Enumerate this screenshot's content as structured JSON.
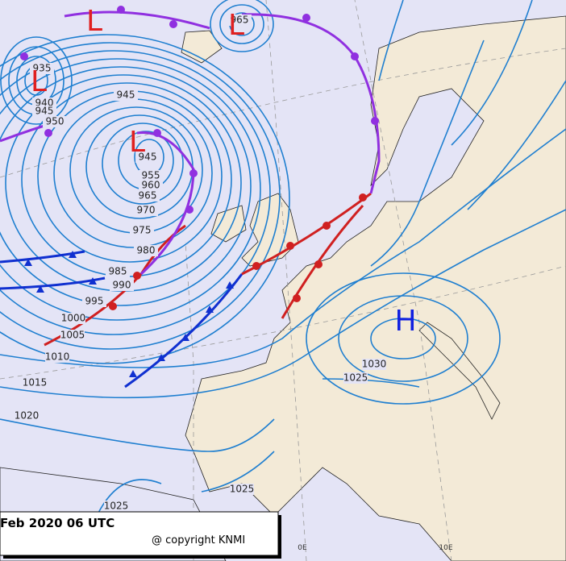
{
  "map": {
    "timestamp": "Feb 2020 06 UTC",
    "copyright": "@ copyright KNMI",
    "longitude_labels": [
      "0E",
      "10E"
    ],
    "centers": [
      {
        "label": "L"
      },
      {
        "label": "L"
      },
      {
        "label": "L"
      },
      {
        "label": "L"
      },
      {
        "label": "H"
      }
    ],
    "isobar_labels": [
      935,
      940,
      945,
      950,
      965,
      945,
      945,
      955,
      960,
      965,
      970,
      975,
      980,
      985,
      990,
      995,
      1000,
      1005,
      1010,
      1015,
      1020,
      1025,
      1030,
      1025,
      1025
    ]
  }
}
